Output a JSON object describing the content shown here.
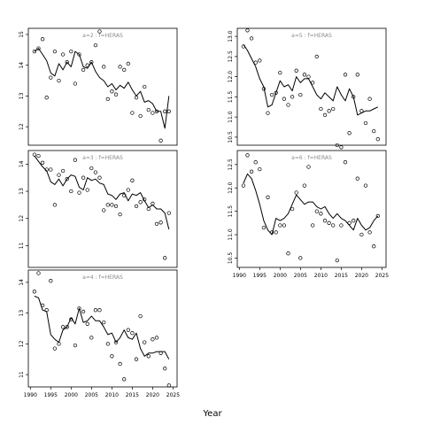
{
  "figure": {
    "xlabel": "Year"
  },
  "chart_data": [
    {
      "type": "scatter",
      "title": "a=2 : f=HERAS",
      "xlim": [
        1989.5,
        2026
      ],
      "ylim": [
        11.4,
        15.2
      ],
      "yticks": [
        12,
        13,
        14,
        15
      ],
      "xticks": [],
      "series": [
        {
          "type": "line",
          "x": [
            1991,
            1992,
            1993,
            1994,
            1995,
            1996,
            1997,
            1998,
            1999,
            2000,
            2001,
            2002,
            2003,
            2004,
            2005,
            2006,
            2007,
            2008,
            2009,
            2010,
            2011,
            2012,
            2013,
            2014,
            2015,
            2016,
            2017,
            2018,
            2019,
            2020,
            2021,
            2022,
            2023,
            2024
          ],
          "y": [
            14.45,
            14.55,
            14.35,
            14.15,
            13.75,
            13.65,
            14.05,
            13.85,
            14.1,
            13.95,
            14.45,
            14.35,
            13.95,
            13.9,
            14.1,
            13.8,
            13.6,
            13.5,
            13.3,
            13.4,
            13.2,
            13.35,
            13.25,
            13.45,
            13.2,
            13.0,
            13.15,
            12.8,
            12.85,
            12.75,
            12.5,
            12.5,
            11.95,
            13.0
          ]
        },
        {
          "type": "points",
          "x": [
            1991,
            1992,
            1993,
            1994,
            1995,
            1996,
            1997,
            1998,
            1999,
            2000,
            2001,
            2002,
            2003,
            2004,
            2005,
            2006,
            2007,
            2008,
            2009,
            2010,
            2011,
            2012,
            2013,
            2014,
            2015,
            2016,
            2017,
            2018,
            2019,
            2020,
            2021,
            2022,
            2023,
            2024
          ],
          "y": [
            14.45,
            14.55,
            14.85,
            12.95,
            13.6,
            14.45,
            13.5,
            14.35,
            14.1,
            14.45,
            13.4,
            14.35,
            13.85,
            14.0,
            14.1,
            14.65,
            15.1,
            13.95,
            12.9,
            13.15,
            13.05,
            13.95,
            13.85,
            14.05,
            12.45,
            12.95,
            12.35,
            13.3,
            12.55,
            12.45,
            12.5,
            11.55,
            12.5,
            12.5
          ]
        }
      ]
    },
    {
      "type": "scatter",
      "title": "a=3 : f=HERAS",
      "xlim": [
        1989.5,
        2026
      ],
      "ylim": [
        10.2,
        14.5
      ],
      "yticks": [
        11,
        12,
        13,
        14
      ],
      "xticks": [],
      "series": [
        {
          "type": "line",
          "x": [
            1991,
            1992,
            1993,
            1994,
            1995,
            1996,
            1997,
            1998,
            1999,
            2000,
            2001,
            2002,
            2003,
            2004,
            2005,
            2006,
            2007,
            2008,
            2009,
            2010,
            2011,
            2012,
            2013,
            2014,
            2015,
            2016,
            2017,
            2018,
            2019,
            2020,
            2021,
            2022,
            2023,
            2024
          ],
          "y": [
            14.3,
            14.1,
            13.9,
            13.75,
            13.35,
            13.25,
            13.45,
            13.2,
            13.45,
            13.6,
            13.55,
            13.15,
            13.05,
            13.5,
            13.4,
            13.45,
            13.3,
            13.25,
            12.9,
            12.85,
            12.7,
            12.9,
            12.95,
            12.65,
            12.9,
            12.85,
            12.95,
            12.65,
            12.4,
            12.5,
            12.35,
            12.35,
            12.2,
            11.6
          ]
        },
        {
          "type": "points",
          "x": [
            1991,
            1992,
            1993,
            1994,
            1995,
            1996,
            1997,
            1998,
            1999,
            2000,
            2001,
            2002,
            2003,
            2004,
            2005,
            2006,
            2007,
            2008,
            2009,
            2010,
            2011,
            2012,
            2013,
            2014,
            2015,
            2016,
            2017,
            2018,
            2019,
            2020,
            2021,
            2022,
            2023,
            2024
          ],
          "y": [
            14.35,
            14.3,
            14.05,
            13.8,
            13.8,
            12.5,
            13.6,
            13.75,
            13.45,
            13.0,
            14.15,
            12.95,
            13.5,
            13.05,
            13.85,
            13.7,
            13.5,
            12.3,
            12.5,
            12.5,
            12.45,
            12.15,
            12.85,
            13.05,
            13.4,
            12.45,
            12.6,
            12.7,
            12.35,
            12.55,
            11.8,
            11.85,
            10.55,
            12.2
          ]
        }
      ]
    },
    {
      "type": "scatter",
      "title": "a=4 : f=HERAS",
      "xlim": [
        1989.5,
        2026
      ],
      "ylim": [
        10.6,
        14.4
      ],
      "yticks": [
        11,
        12,
        13,
        14
      ],
      "xticks": [
        1990,
        1995,
        2000,
        2005,
        2010,
        2015,
        2020,
        2025
      ],
      "series": [
        {
          "type": "line",
          "x": [
            1991,
            1992,
            1993,
            1994,
            1995,
            1996,
            1997,
            1998,
            1999,
            2000,
            2001,
            2002,
            2003,
            2004,
            2005,
            2006,
            2007,
            2008,
            2009,
            2010,
            2011,
            2012,
            2013,
            2014,
            2015,
            2016,
            2017,
            2018,
            2019,
            2020,
            2021,
            2022,
            2023,
            2024
          ],
          "y": [
            13.55,
            13.5,
            13.1,
            13.05,
            12.3,
            12.15,
            12.05,
            12.45,
            12.55,
            12.85,
            12.65,
            13.15,
            12.7,
            12.75,
            12.9,
            12.75,
            12.75,
            12.55,
            12.3,
            12.35,
            12.05,
            12.2,
            12.45,
            12.2,
            12.15,
            12.35,
            11.85,
            11.6,
            11.7,
            11.7,
            11.75,
            11.75,
            11.75,
            11.5
          ]
        },
        {
          "type": "points",
          "x": [
            1991,
            1992,
            1993,
            1994,
            1995,
            1996,
            1997,
            1998,
            1999,
            2000,
            2001,
            2002,
            2003,
            2004,
            2005,
            2006,
            2007,
            2008,
            2009,
            2010,
            2011,
            2012,
            2013,
            2014,
            2015,
            2016,
            2017,
            2018,
            2019,
            2020,
            2021,
            2022,
            2023,
            2024
          ],
          "y": [
            13.7,
            14.3,
            13.25,
            13.1,
            14.05,
            11.85,
            12.0,
            12.55,
            12.55,
            12.8,
            11.95,
            13.15,
            13.05,
            12.65,
            12.2,
            13.1,
            13.1,
            12.7,
            12.0,
            11.6,
            12.05,
            11.35,
            10.85,
            12.45,
            12.35,
            11.5,
            12.9,
            12.05,
            11.6,
            12.15,
            12.2,
            11.7,
            11.2,
            10.65
          ]
        }
      ]
    },
    {
      "type": "scatter",
      "title": "a=5 : f=HERAS",
      "xlim": [
        1989.5,
        2026
      ],
      "ylim": [
        10.3,
        13.2
      ],
      "yticks": [
        10.5,
        11.0,
        11.5,
        12.0,
        12.5,
        13.0
      ],
      "xticks": [],
      "series": [
        {
          "type": "line",
          "x": [
            1991,
            1992,
            1993,
            1994,
            1995,
            1996,
            1997,
            1998,
            1999,
            2000,
            2001,
            2002,
            2003,
            2004,
            2005,
            2006,
            2007,
            2008,
            2009,
            2010,
            2011,
            2012,
            2013,
            2014,
            2015,
            2016,
            2017,
            2018,
            2019,
            2020,
            2021,
            2022,
            2023,
            2024
          ],
          "y": [
            12.8,
            12.65,
            12.45,
            12.25,
            11.95,
            11.75,
            11.25,
            11.3,
            11.6,
            11.9,
            11.75,
            11.8,
            11.65,
            12.0,
            11.85,
            11.95,
            11.95,
            11.75,
            11.55,
            11.45,
            11.6,
            11.5,
            11.4,
            11.75,
            11.55,
            11.4,
            11.7,
            11.5,
            11.05,
            11.1,
            11.15,
            11.15,
            11.2,
            11.25
          ]
        },
        {
          "type": "points",
          "x": [
            1991,
            1992,
            1993,
            1994,
            1995,
            1996,
            1997,
            1998,
            1999,
            2000,
            2001,
            2002,
            2003,
            2004,
            2005,
            2006,
            2007,
            2008,
            2009,
            2010,
            2011,
            2012,
            2013,
            2014,
            2015,
            2016,
            2017,
            2018,
            2019,
            2020,
            2021,
            2022,
            2023,
            2024
          ],
          "y": [
            12.75,
            13.15,
            12.95,
            12.35,
            12.4,
            11.7,
            11.1,
            11.55,
            11.6,
            12.1,
            11.45,
            11.3,
            11.5,
            12.15,
            11.55,
            12.05,
            12.0,
            11.85,
            12.5,
            11.2,
            11.05,
            11.15,
            11.2,
            10.3,
            10.25,
            12.05,
            10.6,
            11.5,
            12.05,
            11.15,
            10.85,
            11.45,
            10.65,
            10.45
          ]
        }
      ]
    },
    {
      "type": "scatter",
      "title": "a=6 : f=HERAS",
      "xlim": [
        1989.5,
        2026
      ],
      "ylim": [
        10.3,
        12.8
      ],
      "yticks": [
        10.5,
        11.0,
        11.5,
        12.0,
        12.5
      ],
      "xticks": [
        1990,
        1995,
        2000,
        2005,
        2010,
        2015,
        2020,
        2025
      ],
      "series": [
        {
          "type": "line",
          "x": [
            1991,
            1992,
            1993,
            1994,
            1995,
            1996,
            1997,
            1998,
            1999,
            2000,
            2001,
            2002,
            2003,
            2004,
            2005,
            2006,
            2007,
            2008,
            2009,
            2010,
            2011,
            2012,
            2013,
            2014,
            2015,
            2016,
            2017,
            2018,
            2019,
            2020,
            2021,
            2022,
            2023,
            2024
          ],
          "y": [
            12.1,
            12.3,
            12.2,
            11.95,
            11.65,
            11.3,
            11.1,
            11.0,
            11.35,
            11.3,
            11.35,
            11.45,
            11.65,
            11.85,
            11.75,
            11.65,
            11.7,
            11.7,
            11.6,
            11.55,
            11.6,
            11.45,
            11.35,
            11.45,
            11.35,
            11.3,
            11.2,
            11.1,
            11.35,
            11.2,
            11.1,
            11.15,
            11.3,
            11.4
          ]
        },
        {
          "type": "points",
          "x": [
            1991,
            1992,
            1993,
            1994,
            1995,
            1996,
            1997,
            1998,
            1999,
            2000,
            2001,
            2002,
            2003,
            2004,
            2005,
            2006,
            2007,
            2008,
            2009,
            2010,
            2011,
            2012,
            2013,
            2014,
            2015,
            2016,
            2017,
            2018,
            2019,
            2020,
            2021,
            2022,
            2023,
            2024
          ],
          "y": [
            12.05,
            12.7,
            12.35,
            12.55,
            12.4,
            11.15,
            11.8,
            11.05,
            11.05,
            11.2,
            11.2,
            10.6,
            11.55,
            11.9,
            10.5,
            12.05,
            12.45,
            11.2,
            11.5,
            11.45,
            11.3,
            11.25,
            11.2,
            10.45,
            11.2,
            12.55,
            11.25,
            11.3,
            12.2,
            11.0,
            12.05,
            11.05,
            10.75,
            11.4
          ]
        }
      ]
    }
  ]
}
